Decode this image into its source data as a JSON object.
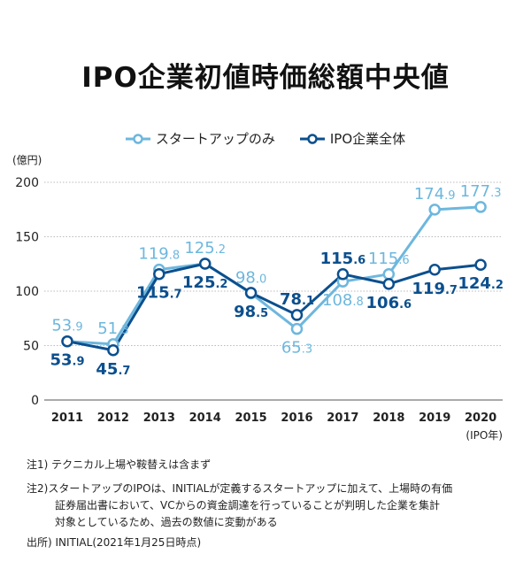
{
  "chart_data": {
    "type": "line",
    "title": "IPO企業初値時価総額中央値",
    "ylabel": "(億円)",
    "xlabel": "(IPO年)",
    "ylim": [
      0,
      200
    ],
    "yticks": [
      0,
      50,
      100,
      150,
      200
    ],
    "grid": true,
    "legend_position": "top-center",
    "categories": [
      "2011",
      "2012",
      "2013",
      "2014",
      "2015",
      "2016",
      "2017",
      "2018",
      "2019",
      "2020"
    ],
    "series": [
      {
        "name": "スタートアップのみ",
        "color": "#6db7de",
        "values": [
          53.9,
          51.3,
          119.8,
          125.2,
          98.0,
          65.3,
          108.8,
          115.6,
          174.9,
          177.3
        ],
        "labels": [
          "53.9",
          "51.3",
          "119.8",
          "125.2",
          "98.0",
          "65.3",
          "108.8",
          "115.6",
          "174.9",
          "177.3"
        ],
        "label_side": [
          "above",
          "above",
          "above",
          "above",
          "above",
          "below",
          "below",
          "above",
          "above",
          "above"
        ]
      },
      {
        "name": "IPO企業全体",
        "color": "#0b4f8e",
        "values": [
          53.9,
          45.7,
          115.7,
          125.2,
          98.5,
          78.1,
          115.6,
          106.6,
          119.7,
          124.2
        ],
        "labels": [
          "53.9",
          "45.7",
          "115.7",
          "125.2",
          "98.5",
          "78.1",
          "115.6",
          "106.6",
          "119.7",
          "124.2"
        ],
        "label_side": [
          "below",
          "below",
          "below",
          "below",
          "below",
          "above",
          "above",
          "below",
          "below",
          "below"
        ]
      }
    ]
  },
  "notes": {
    "note1": "注1)  テクニカル上場や鞍替えは含まず",
    "note2_line1": "注2)スタートアップのIPOは、INITIALが定義するスタートアップに加えて、上場時の有価",
    "note2_line2": "証券届出書において、VCからの資金調達を行っていることが判明した企業を集計",
    "note2_line3": "対象としているため、過去の数値に変動がある",
    "source": "出所) INITIAL(2021年1月25日時点)"
  }
}
